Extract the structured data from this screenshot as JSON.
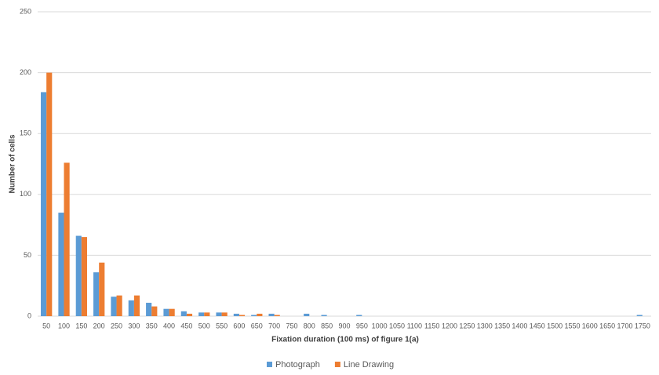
{
  "chart_data": {
    "type": "bar",
    "categories": [
      "50",
      "100",
      "150",
      "200",
      "250",
      "300",
      "350",
      "400",
      "450",
      "500",
      "550",
      "600",
      "650",
      "700",
      "750",
      "800",
      "850",
      "900",
      "950",
      "1000",
      "1050",
      "1100",
      "1150",
      "1200",
      "1250",
      "1300",
      "1350",
      "1400",
      "1450",
      "1500",
      "1550",
      "1600",
      "1650",
      "1700",
      "1750"
    ],
    "series": [
      {
        "name": "Photograph",
        "color": "#5b9bd5",
        "values": [
          184,
          85,
          66,
          36,
          16,
          13,
          11,
          6,
          4,
          3,
          3,
          2,
          1,
          2,
          0,
          2,
          1,
          0,
          1,
          0,
          0,
          0,
          0,
          0,
          0,
          0,
          0,
          0,
          0,
          0,
          0,
          0,
          0,
          0,
          1
        ]
      },
      {
        "name": "Line Drawing",
        "color": "#ed7d31",
        "values": [
          200,
          126,
          65,
          44,
          17,
          17,
          8,
          6,
          2,
          3,
          3,
          1,
          2,
          1,
          0,
          0,
          0,
          0,
          0,
          0,
          0,
          0,
          0,
          0,
          0,
          0,
          0,
          0,
          0,
          0,
          0,
          0,
          0,
          0,
          0
        ]
      }
    ],
    "ylim": [
      0,
      250
    ],
    "yticks": [
      0,
      50,
      100,
      150,
      200,
      250
    ],
    "grid": true,
    "y_label": "Number of cells",
    "x_label": "Fixation duration (100 ms) of figure 1(a)",
    "legend": "bottom"
  }
}
